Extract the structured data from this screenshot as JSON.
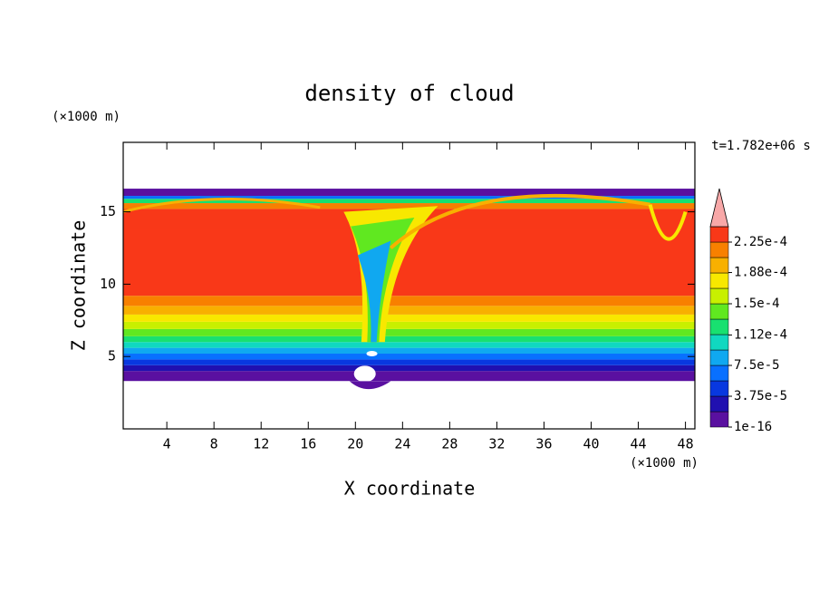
{
  "chart_data": {
    "type": "contour",
    "title": "density of cloud",
    "x_label": "X coordinate",
    "y_label": "Z coordinate",
    "x_unit": "(×1000 m)",
    "y_unit": "(×1000 m)",
    "annotation": "t=1.782e+06 s",
    "xlim": [
      0.3,
      48.8
    ],
    "ylim": [
      0,
      19.8
    ],
    "xticks": [
      4,
      8,
      12,
      16,
      20,
      24,
      28,
      32,
      36,
      40,
      44,
      48
    ],
    "yticks": [
      5,
      10,
      15
    ],
    "colorbar": {
      "levels": [
        {
          "value": 1e-16,
          "label": "1e-16"
        },
        {
          "value": 3.75e-05,
          "label": "3.75e-5"
        },
        {
          "value": 7.5e-05,
          "label": "7.5e-5"
        },
        {
          "value": 0.000112,
          "label": "1.12e-4"
        },
        {
          "value": 0.00015,
          "label": "1.5e-4"
        },
        {
          "value": 0.000188,
          "label": "1.88e-4"
        },
        {
          "value": 0.000225,
          "label": "2.25e-4"
        }
      ],
      "colors": [
        "#5a10a0",
        "#2010b0",
        "#0838e0",
        "#0870ff",
        "#10a8f0",
        "#10d8c0",
        "#18e070",
        "#60e820",
        "#c8f000",
        "#f8e800",
        "#f8b000",
        "#f88000",
        "#f83818"
      ],
      "extend_color": "#f8a8a8"
    }
  }
}
